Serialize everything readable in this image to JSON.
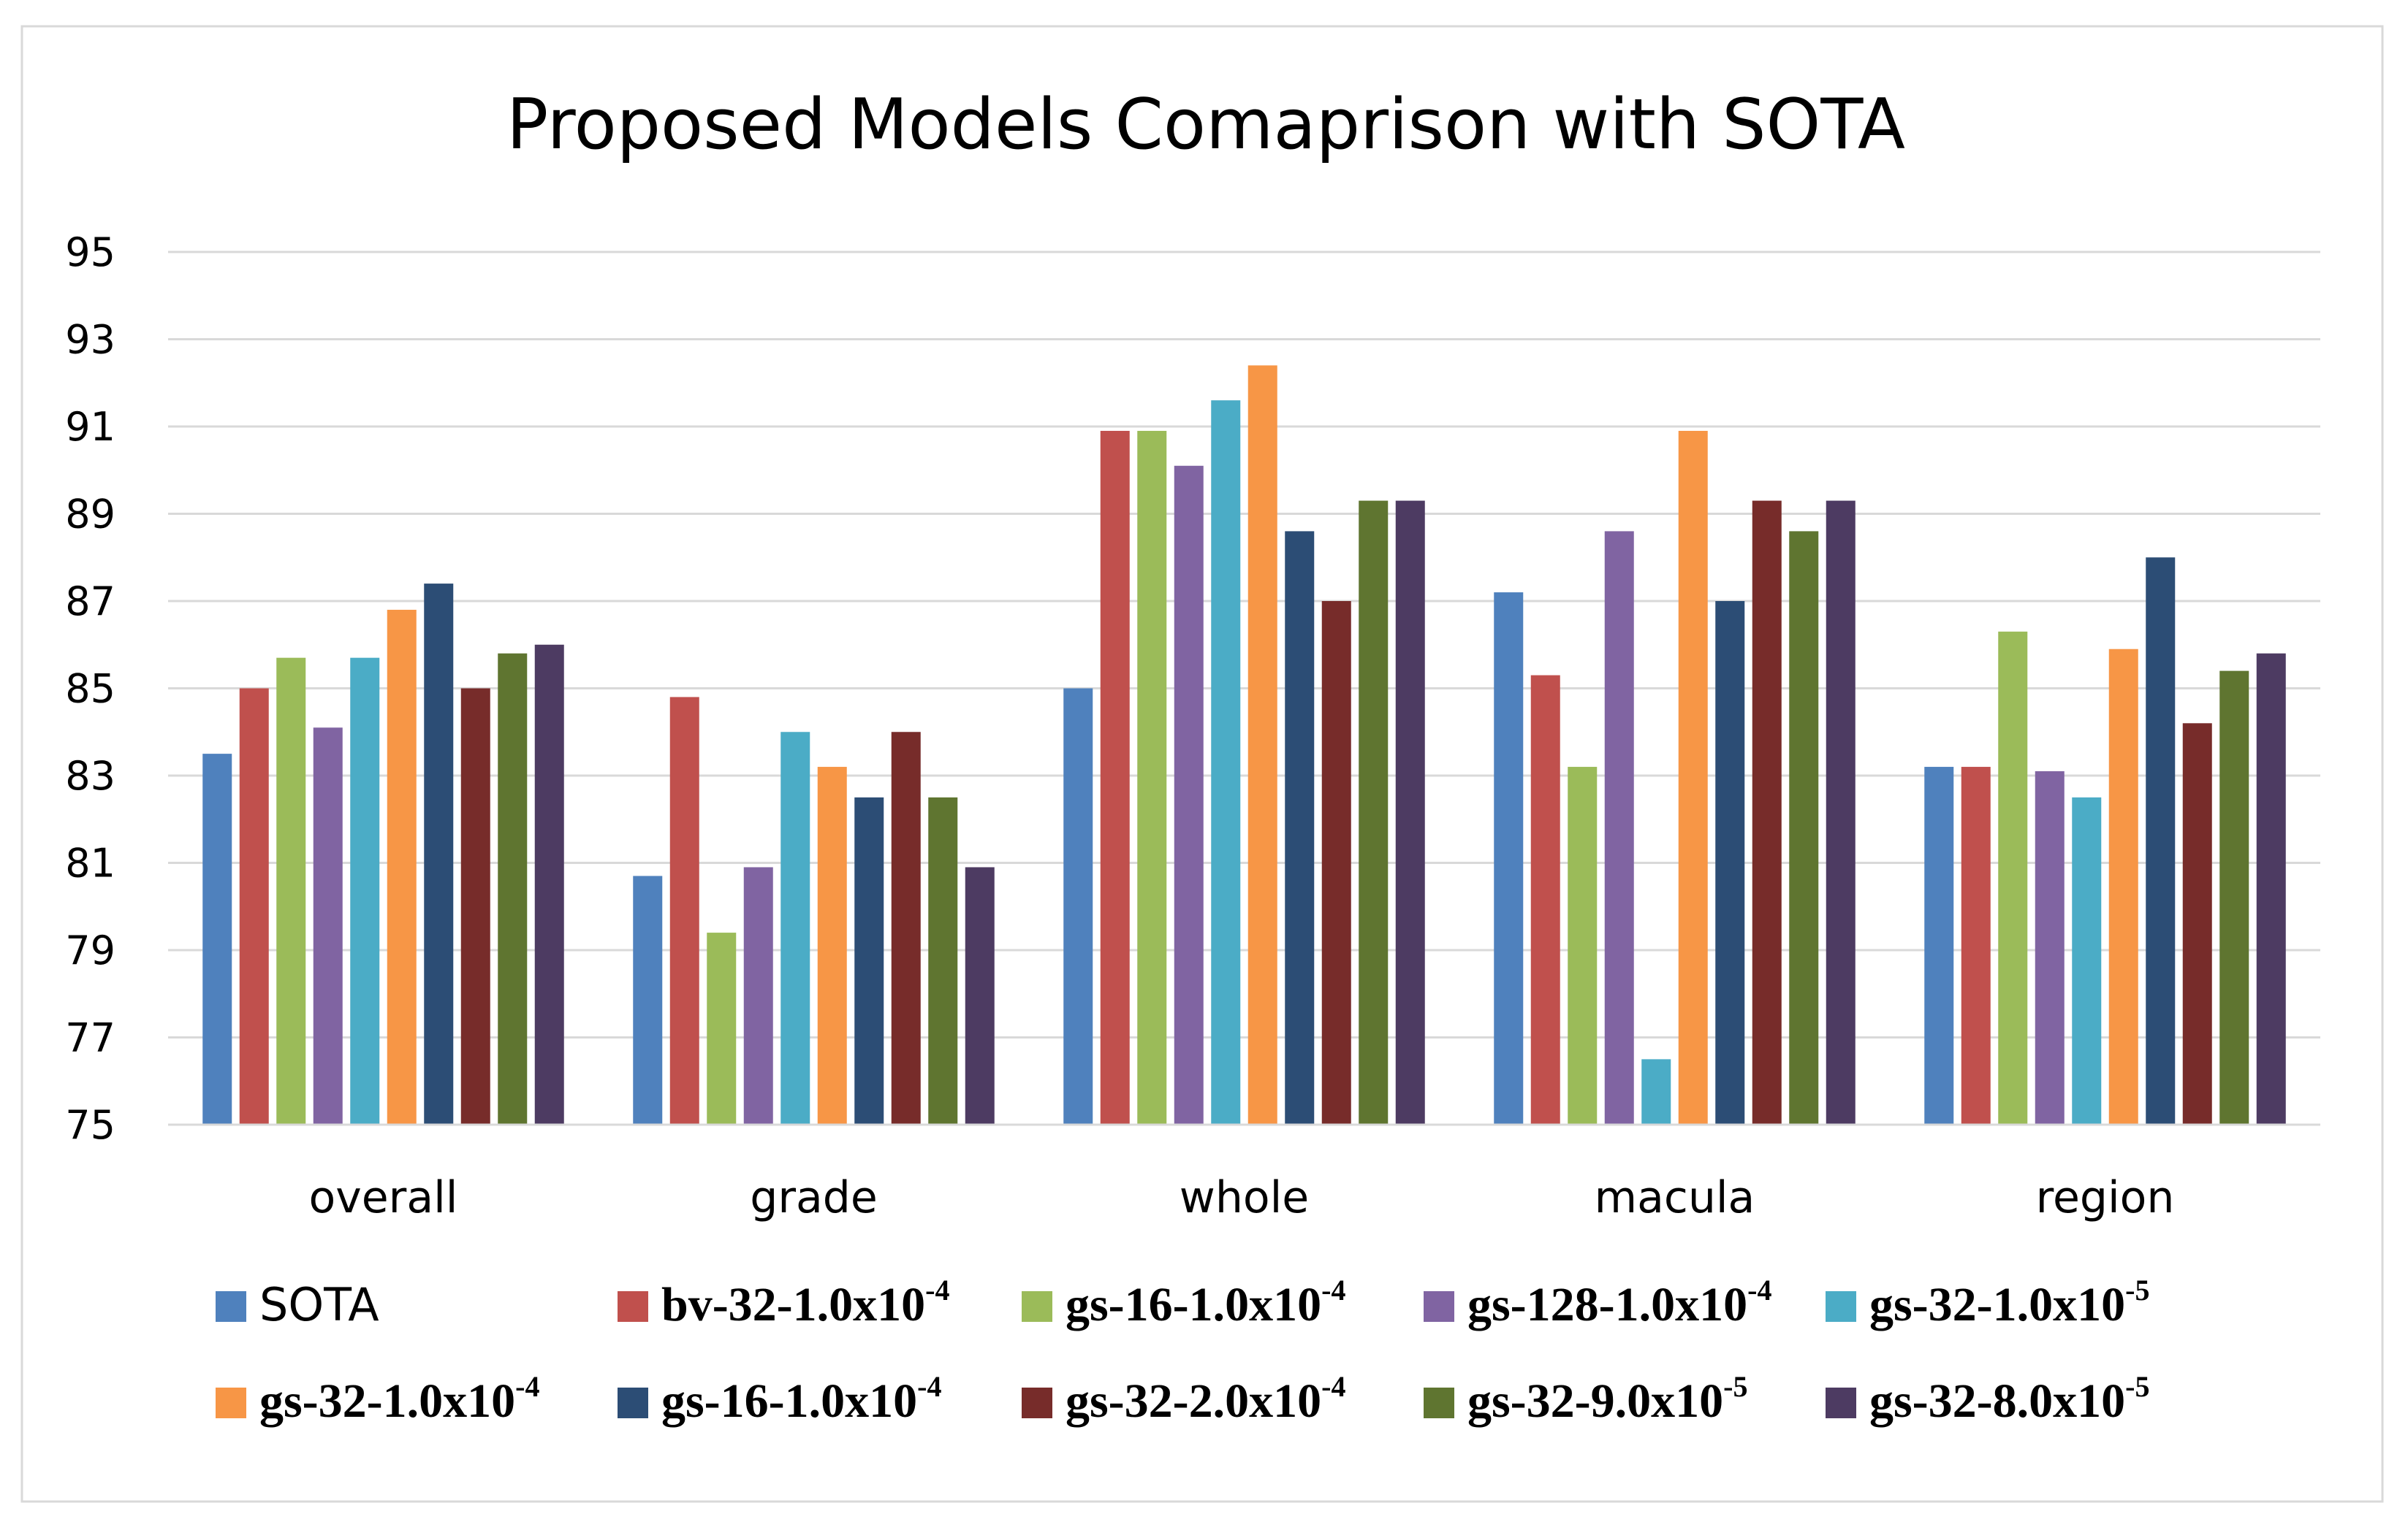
{
  "chart_data": {
    "type": "bar",
    "title": "Proposed Models Comaprison with SOTA",
    "xlabel": "",
    "ylabel": "",
    "ylim": [
      75,
      95
    ],
    "yticks": [
      75,
      77,
      79,
      81,
      83,
      85,
      87,
      89,
      91,
      93,
      95
    ],
    "grid": true,
    "legend_position": "bottom",
    "categories": [
      "overall",
      "grade",
      "whole",
      "macula",
      "region"
    ],
    "series": [
      {
        "name": "SOTA",
        "base": "SOTA",
        "exp": "",
        "color": "#4F81BD",
        "values": [
          83.5,
          80.7,
          85.0,
          87.2,
          83.2
        ]
      },
      {
        "name": "bv-32-1.0x10-4",
        "base": "bv-32-1.0x10",
        "exp": "-4",
        "color": "#C0504D",
        "values": [
          85.0,
          84.8,
          90.9,
          85.3,
          83.2
        ]
      },
      {
        "name": "gs-16-1.0x10-4",
        "base": "gs-16-1.0x10",
        "exp": "-4",
        "color": "#9BBB59",
        "values": [
          85.7,
          79.4,
          90.9,
          83.2,
          86.3
        ]
      },
      {
        "name": "gs-128-1.0x10-4",
        "base": "gs-128-1.0x10",
        "exp": "-4",
        "color": "#8064A2",
        "values": [
          84.1,
          80.9,
          90.1,
          88.6,
          83.1
        ]
      },
      {
        "name": "gs-32-1.0x10-5",
        "base": "gs-32-1.0x10",
        "exp": "-5",
        "color": "#4BACC6",
        "values": [
          85.7,
          84.0,
          91.6,
          76.5,
          82.5
        ]
      },
      {
        "name": "gs-32-1.0x10-4",
        "base": "gs-32-1.0x10",
        "exp": "-4",
        "color": "#F79646",
        "values": [
          86.8,
          83.2,
          92.4,
          90.9,
          85.9
        ]
      },
      {
        "name": "gs-16-1.0x10-4",
        "base": "gs-16-1.0x10",
        "exp": "-4",
        "color": "#2C4D75",
        "values": [
          87.4,
          82.5,
          88.6,
          87.0,
          88.0
        ]
      },
      {
        "name": "gs-32-2.0x10-4",
        "base": "gs-32-2.0x10",
        "exp": "-4",
        "color": "#772C2A",
        "values": [
          85.0,
          84.0,
          87.0,
          89.3,
          84.2
        ]
      },
      {
        "name": "gs-32-9.0x10-5",
        "base": "gs-32-9.0x10",
        "exp": "-5",
        "color": "#5F7530",
        "values": [
          85.8,
          82.5,
          89.3,
          88.6,
          85.4
        ]
      },
      {
        "name": "gs-32-8.0x10-5",
        "base": "gs-32-8.0x10",
        "exp": "-5",
        "color": "#4D3B62",
        "values": [
          86.0,
          80.9,
          89.3,
          89.3,
          85.8
        ]
      }
    ]
  }
}
